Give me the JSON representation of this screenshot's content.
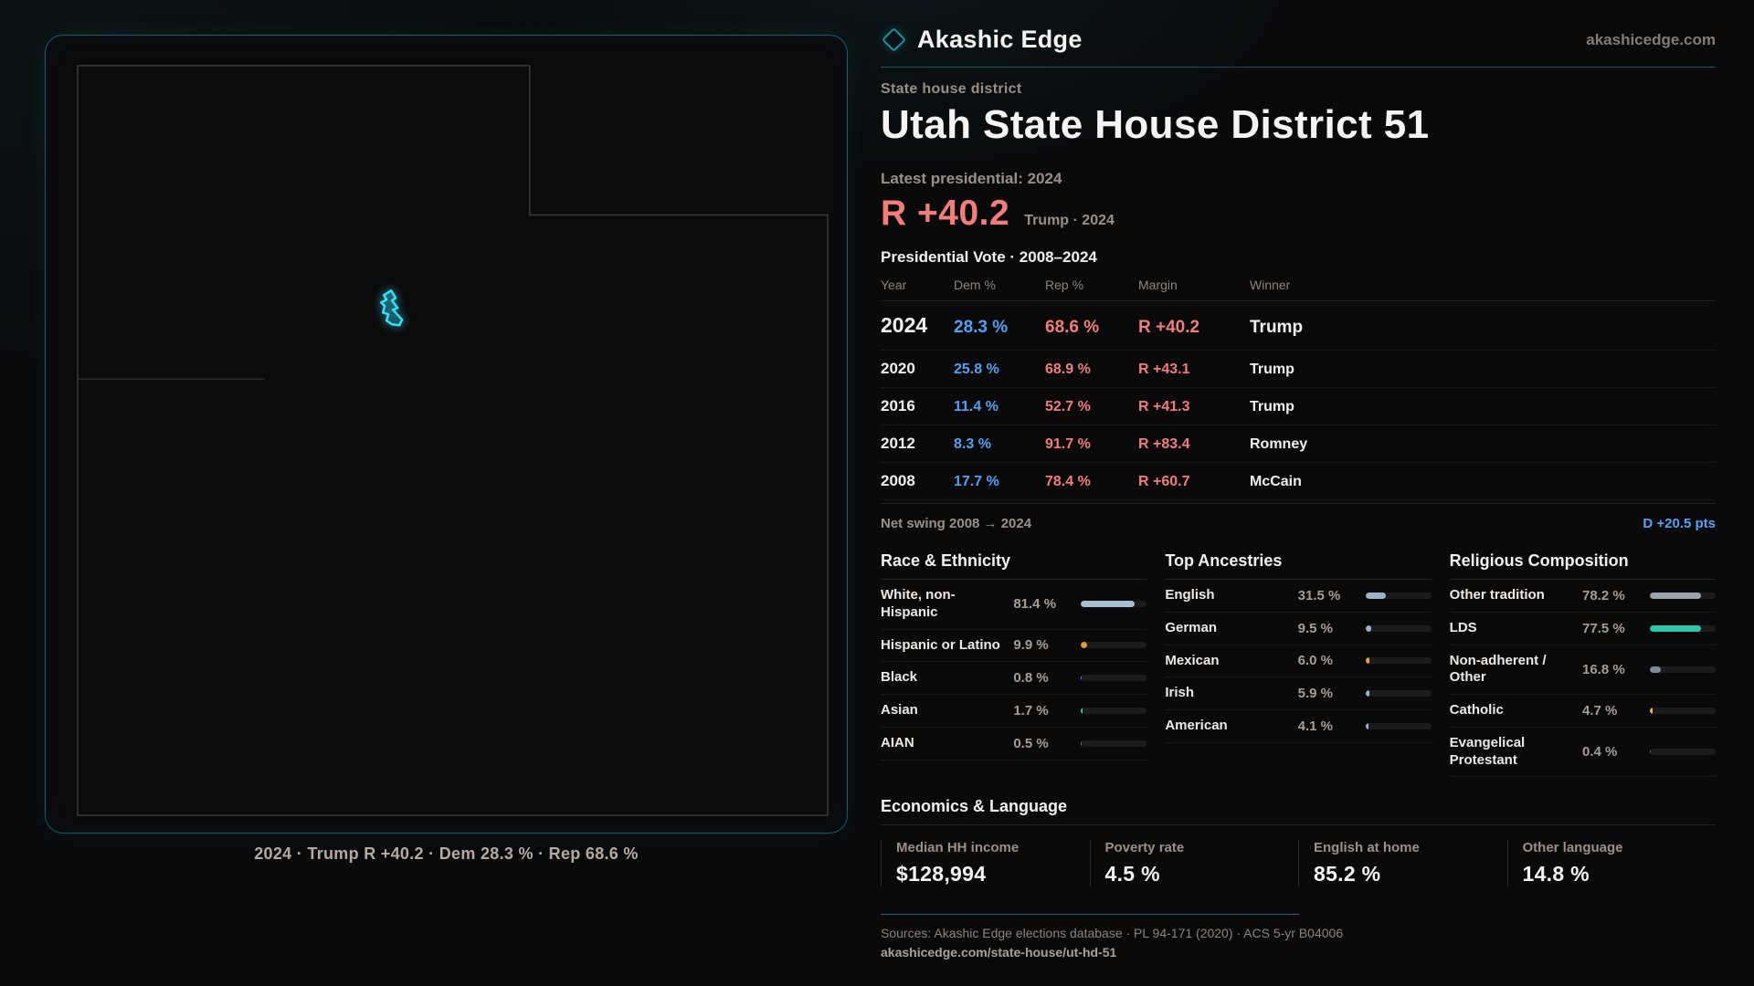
{
  "brand": {
    "name": "Akashic Edge",
    "domain": "akashicedge.com"
  },
  "page": {
    "eyebrow": "State house district",
    "title": "Utah State House District 51",
    "latest_label": "Latest presidential: 2024",
    "headline_margin": "R +40.2",
    "headline_context": "Trump · 2024",
    "table_title": "Presidential Vote · 2008–2024"
  },
  "map": {
    "caption": "2024 · Trump R +40.2 · Dem 28.3 % · Rep 68.6 %"
  },
  "vote_table": {
    "columns": [
      "Year",
      "Dem %",
      "Rep %",
      "Margin",
      "Winner"
    ],
    "rows": [
      {
        "year": "2024",
        "dem": "28.3 %",
        "rep": "68.6 %",
        "margin": "R +40.2",
        "winner": "Trump",
        "featured": true
      },
      {
        "year": "2020",
        "dem": "25.8 %",
        "rep": "68.9 %",
        "margin": "R +43.1",
        "winner": "Trump",
        "featured": false
      },
      {
        "year": "2016",
        "dem": "11.4 %",
        "rep": "52.7 %",
        "margin": "R +41.3",
        "winner": "Trump",
        "featured": false
      },
      {
        "year": "2012",
        "dem": "8.3 %",
        "rep": "91.7 %",
        "margin": "R +83.4",
        "winner": "Romney",
        "featured": false
      },
      {
        "year": "2008",
        "dem": "17.7 %",
        "rep": "78.4 %",
        "margin": "R +60.7",
        "winner": "McCain",
        "featured": false
      }
    ]
  },
  "net_swing": {
    "label": "Net swing 2008 → 2024",
    "value": "D +20.5 pts"
  },
  "demographics": {
    "sections": [
      {
        "title": "Race & Ethnicity",
        "rows": [
          {
            "label": "White, non-Hispanic",
            "value": "81.4 %",
            "pct": 81.4,
            "color": "#a9bdd3"
          },
          {
            "label": "Hispanic or Latino",
            "value": "9.9 %",
            "pct": 9.9,
            "color": "#e09a3e"
          },
          {
            "label": "Black",
            "value": "0.8 %",
            "pct": 0.8,
            "color": "#7d6ef0"
          },
          {
            "label": "Asian",
            "value": "1.7 %",
            "pct": 1.7,
            "color": "#35d0a0"
          },
          {
            "label": "AIAN",
            "value": "0.5 %",
            "pct": 0.5,
            "color": "#6b6b70"
          }
        ]
      },
      {
        "title": "Top Ancestries",
        "rows": [
          {
            "label": "English",
            "value": "31.5 %",
            "pct": 31.5,
            "color": "#9db3cd"
          },
          {
            "label": "German",
            "value": "9.5 %",
            "pct": 9.5,
            "color": "#9db3cd"
          },
          {
            "label": "Mexican",
            "value": "6.0 %",
            "pct": 6.0,
            "color": "#e6a43e"
          },
          {
            "label": "Irish",
            "value": "5.9 %",
            "pct": 5.9,
            "color": "#9db3cd"
          },
          {
            "label": "American",
            "value": "4.1 %",
            "pct": 4.1,
            "color": "#9db3cd"
          }
        ]
      },
      {
        "title": "Religious Composition",
        "rows": [
          {
            "label": "Other tradition",
            "value": "78.2 %",
            "pct": 78.2,
            "color": "#9aa2ab"
          },
          {
            "label": "LDS",
            "value": "77.5 %",
            "pct": 77.5,
            "color": "#2bc9a9"
          },
          {
            "label": "Non-adherent / Other",
            "value": "16.8 %",
            "pct": 16.8,
            "color": "#7b8b9b"
          },
          {
            "label": "Catholic",
            "value": "4.7 %",
            "pct": 4.7,
            "color": "#e0b83e"
          },
          {
            "label": "Evangelical Protestant",
            "value": "0.4 %",
            "pct": 0.4,
            "color": "#5a5a5e"
          }
        ]
      }
    ]
  },
  "economics": {
    "title": "Economics & Language",
    "stats": [
      {
        "label": "Median HH income",
        "value": "$128,994"
      },
      {
        "label": "Poverty rate",
        "value": "4.5 %"
      },
      {
        "label": "English at home",
        "value": "85.2 %"
      },
      {
        "label": "Other language",
        "value": "14.8 %"
      }
    ]
  },
  "footer": {
    "sources": "Sources: Akashic Edge elections database · PL 94-171 (2020) · ACS 5-yr B04006",
    "permalink": "akashicedge.com/state-house/ut-hd-51"
  },
  "colors": {
    "accent_teal": "#39dcf8",
    "rep_red": "#ef7e7d",
    "dem_blue": "#55a0f0"
  },
  "chart_data": [
    {
      "type": "table",
      "title": "Presidential Vote 2008–2024",
      "columns": [
        "Year",
        "Dem %",
        "Rep %",
        "Margin",
        "Winner"
      ],
      "rows": [
        [
          2024,
          28.3,
          68.6,
          "R +40.2",
          "Trump"
        ],
        [
          2020,
          25.8,
          68.9,
          "R +43.1",
          "Trump"
        ],
        [
          2016,
          11.4,
          52.7,
          "R +41.3",
          "Trump"
        ],
        [
          2012,
          8.3,
          91.7,
          "R +83.4",
          "Romney"
        ],
        [
          2008,
          17.7,
          78.4,
          "R +60.7",
          "McCain"
        ]
      ]
    },
    {
      "type": "bar",
      "title": "Race & Ethnicity",
      "categories": [
        "White, non-Hispanic",
        "Hispanic or Latino",
        "Black",
        "Asian",
        "AIAN"
      ],
      "values": [
        81.4,
        9.9,
        0.8,
        1.7,
        0.5
      ],
      "xlabel": "",
      "ylabel": "%",
      "ylim": [
        0,
        100
      ]
    },
    {
      "type": "bar",
      "title": "Top Ancestries",
      "categories": [
        "English",
        "German",
        "Mexican",
        "Irish",
        "American"
      ],
      "values": [
        31.5,
        9.5,
        6.0,
        5.9,
        4.1
      ],
      "xlabel": "",
      "ylabel": "%",
      "ylim": [
        0,
        100
      ]
    },
    {
      "type": "bar",
      "title": "Religious Composition",
      "categories": [
        "Other tradition",
        "LDS",
        "Non-adherent / Other",
        "Catholic",
        "Evangelical Protestant"
      ],
      "values": [
        78.2,
        77.5,
        16.8,
        4.7,
        0.4
      ],
      "xlabel": "",
      "ylabel": "%",
      "ylim": [
        0,
        100
      ]
    }
  ]
}
